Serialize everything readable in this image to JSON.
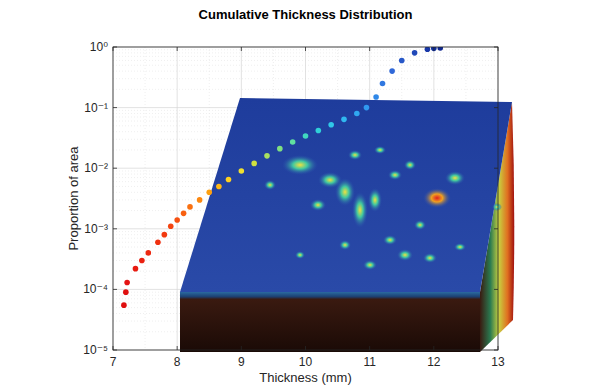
{
  "chart_data": {
    "type": "scatter",
    "title": "Cumulative Thickness Distribution",
    "x_label": "Thickness (mm)",
    "y_label": "Proportion of area",
    "x": [
      7.17,
      7.2,
      7.22,
      7.35,
      7.45,
      7.55,
      7.7,
      7.8,
      7.9,
      8.0,
      8.1,
      8.2,
      8.35,
      8.5,
      8.65,
      8.8,
      9.0,
      9.2,
      9.4,
      9.6,
      9.8,
      10.0,
      10.2,
      10.4,
      10.6,
      10.8,
      10.95,
      11.1,
      11.2,
      11.35,
      11.5,
      11.7,
      11.9,
      12.0,
      12.1
    ],
    "values": [
      5.5e-05,
      9e-05,
      0.00013,
      0.00022,
      0.0003,
      0.0004,
      0.0006,
      0.0008,
      0.0011,
      0.0014,
      0.0018,
      0.0023,
      0.003,
      0.004,
      0.005,
      0.0065,
      0.009,
      0.012,
      0.016,
      0.021,
      0.027,
      0.034,
      0.042,
      0.052,
      0.064,
      0.08,
      0.1,
      0.15,
      0.25,
      0.4,
      0.6,
      0.8,
      0.92,
      0.95,
      0.96
    ],
    "colors": [
      "#e01010",
      "#e01010",
      "#e41414",
      "#e81a10",
      "#ea2010",
      "#ec2810",
      "#f03010",
      "#f23a10",
      "#f44410",
      "#f65010",
      "#f86010",
      "#fa7010",
      "#fc8810",
      "#fea010",
      "#ffb818",
      "#ffd020",
      "#f0e030",
      "#d0e040",
      "#a8e060",
      "#80e080",
      "#60e0a0",
      "#40d8c0",
      "#30d0d8",
      "#30c8e8",
      "#30b8f0",
      "#30a8f0",
      "#3098f0",
      "#3088e8",
      "#3078e0",
      "#3068d8",
      "#2858c8",
      "#2048b8",
      "#1838a8",
      "#1030a0",
      "#102890"
    ],
    "marker": "circle",
    "log": "y",
    "grid": true,
    "xlim": [
      7,
      13
    ],
    "xticks": [
      7,
      8,
      9,
      10,
      11,
      12,
      13
    ],
    "ylim": [
      1e-05,
      1
    ],
    "yticks": [
      {
        "value": 1e-05,
        "label": "10⁻⁵"
      },
      {
        "value": 0.0001,
        "label": "10⁻⁴"
      },
      {
        "value": 0.001,
        "label": "10⁻³"
      },
      {
        "value": 0.01,
        "label": "10⁻²"
      },
      {
        "value": 0.1,
        "label": "10⁻¹"
      },
      {
        "value": 1,
        "label": "10⁰"
      }
    ]
  }
}
